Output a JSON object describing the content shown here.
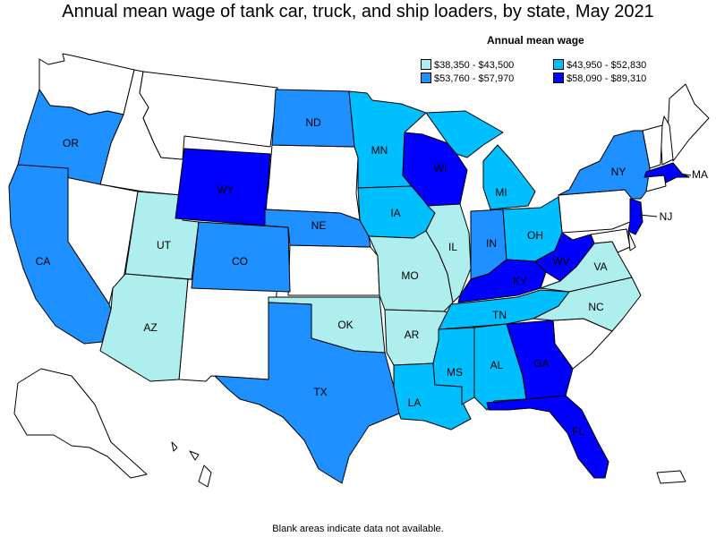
{
  "title": "Annual mean wage of tank car, truck, and ship loaders, by state, May 2021",
  "legend": {
    "title": "Annual mean wage",
    "items": [
      {
        "label": "$38,350 - $43,500",
        "color": "#AEEEEE"
      },
      {
        "label": "$43,950 - $52,830",
        "color": "#00BFFF"
      },
      {
        "label": "$53,760 - $57,970",
        "color": "#1E90FF"
      },
      {
        "label": "$58,090 - $89,310",
        "color": "#0000FF"
      }
    ]
  },
  "blank_color": "#FFFFFF",
  "footnote": "Blank areas indicate data not available.",
  "states": [
    {
      "abbr": "OR",
      "bin": 2
    },
    {
      "abbr": "CA",
      "bin": 2
    },
    {
      "abbr": "UT",
      "bin": 0
    },
    {
      "abbr": "AZ",
      "bin": 0
    },
    {
      "abbr": "WY",
      "bin": 3
    },
    {
      "abbr": "CO",
      "bin": 2
    },
    {
      "abbr": "ND",
      "bin": 2
    },
    {
      "abbr": "NE",
      "bin": 2
    },
    {
      "abbr": "OK",
      "bin": 0
    },
    {
      "abbr": "TX",
      "bin": 2
    },
    {
      "abbr": "MN",
      "bin": 1
    },
    {
      "abbr": "IA",
      "bin": 1
    },
    {
      "abbr": "MO",
      "bin": 0
    },
    {
      "abbr": "AR",
      "bin": 0
    },
    {
      "abbr": "LA",
      "bin": 1
    },
    {
      "abbr": "WI",
      "bin": 3
    },
    {
      "abbr": "IL",
      "bin": 0
    },
    {
      "abbr": "MI",
      "bin": 1
    },
    {
      "abbr": "IN",
      "bin": 2
    },
    {
      "abbr": "OH",
      "bin": 1
    },
    {
      "abbr": "KY",
      "bin": 3
    },
    {
      "abbr": "TN",
      "bin": 1
    },
    {
      "abbr": "MS",
      "bin": 1
    },
    {
      "abbr": "AL",
      "bin": 1
    },
    {
      "abbr": "GA",
      "bin": 3
    },
    {
      "abbr": "FL",
      "bin": 3
    },
    {
      "abbr": "WV",
      "bin": 3
    },
    {
      "abbr": "VA",
      "bin": 0
    },
    {
      "abbr": "NC",
      "bin": 0
    },
    {
      "abbr": "NY",
      "bin": 2
    },
    {
      "abbr": "NJ",
      "bin": 3
    },
    {
      "abbr": "MA",
      "bin": 3
    }
  ]
}
